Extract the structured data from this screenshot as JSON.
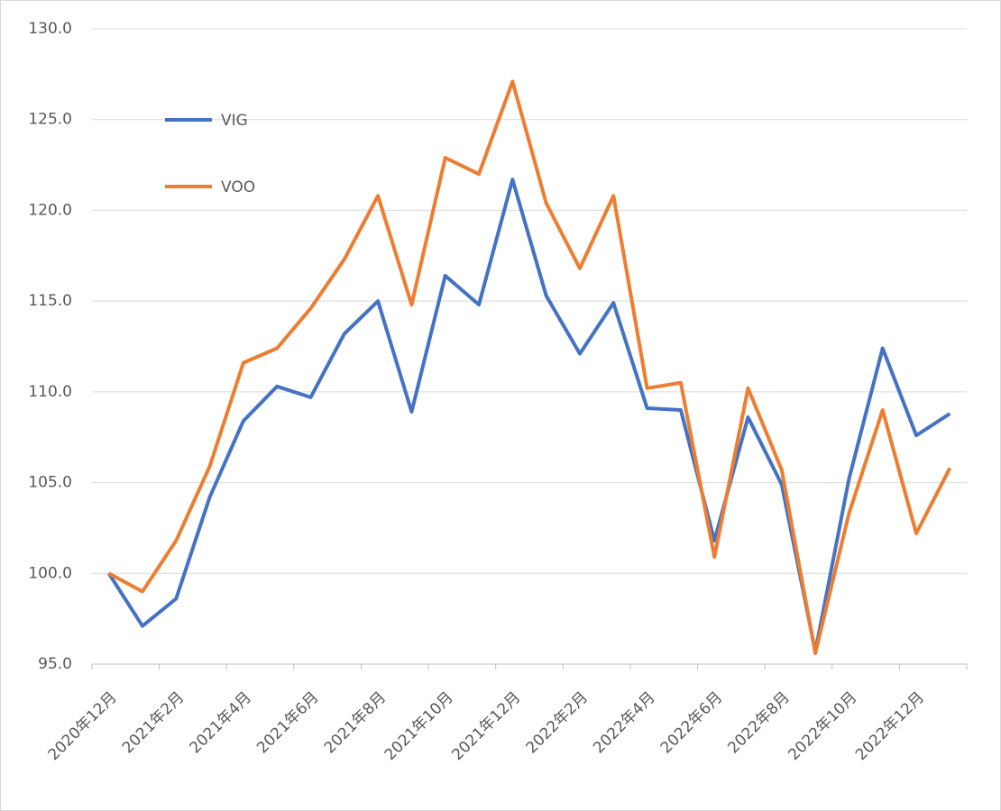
{
  "chart_data": {
    "type": "line",
    "categories": [
      "2020年12月",
      null,
      "2021年2月",
      null,
      "2021年4月",
      null,
      "2021年6月",
      null,
      "2021年8月",
      null,
      "2021年10月",
      null,
      "2021年12月",
      null,
      "2022年2月",
      null,
      "2022年4月",
      null,
      "2022年6月",
      null,
      "2022年8月",
      null,
      "2022年10月",
      null,
      "2022年12月",
      null
    ],
    "series": [
      {
        "name": "VIG",
        "color": "#4472c4",
        "values": [
          100.0,
          97.1,
          98.6,
          104.2,
          108.4,
          110.3,
          109.7,
          113.2,
          115.0,
          108.9,
          116.4,
          114.8,
          121.7,
          115.3,
          112.1,
          114.9,
          109.1,
          109.0,
          101.8,
          108.6,
          104.9,
          95.7,
          105.2,
          112.4,
          107.6,
          108.8
        ]
      },
      {
        "name": "VOO",
        "color": "#ed7d31",
        "values": [
          100.0,
          99.0,
          101.8,
          105.9,
          111.6,
          112.4,
          114.6,
          117.3,
          120.8,
          114.8,
          122.9,
          122.0,
          127.1,
          120.4,
          116.8,
          120.8,
          110.2,
          110.5,
          100.9,
          110.2,
          105.7,
          95.6,
          103.3,
          109.0,
          102.2,
          105.8
        ]
      }
    ],
    "ylim": [
      95,
      130
    ],
    "yticks": [
      {
        "value": 95,
        "label": "95.0"
      },
      {
        "value": 100,
        "label": "100.0"
      },
      {
        "value": 105,
        "label": "105.0"
      },
      {
        "value": 110,
        "label": "110.0"
      },
      {
        "value": 115,
        "label": "115.0"
      },
      {
        "value": 120,
        "label": "120.0"
      },
      {
        "value": 125,
        "label": "125.0"
      },
      {
        "value": 130,
        "label": "130.0"
      }
    ],
    "grid": true,
    "legend": "upper-left"
  }
}
